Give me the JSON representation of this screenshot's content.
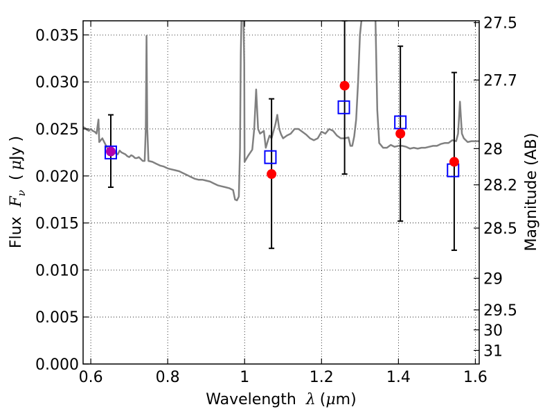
{
  "chart_data": {
    "type": "scatter",
    "xlabel": {
      "pre": "Wavelength",
      "sym": "λ",
      "open": "(",
      "mu": "μ",
      "unit": "m)"
    },
    "ylabel": {
      "pre": "Flux",
      "sym": "F",
      "sub": "ν",
      "open": "(",
      "mu": "μ",
      "unit": "Jy )"
    },
    "y2label": "Magnitude (AB)",
    "xlim": [
      0.58,
      1.61
    ],
    "ylim": [
      0.0,
      0.0365
    ],
    "grid": true,
    "x_ticks": [
      {
        "value": 0.6,
        "label": "0.6"
      },
      {
        "value": 0.8,
        "label": "0.8"
      },
      {
        "value": 1.0,
        "label": "1"
      },
      {
        "value": 1.2,
        "label": "1.2"
      },
      {
        "value": 1.4,
        "label": "1.4"
      },
      {
        "value": 1.6,
        "label": "1.6"
      }
    ],
    "y_ticks": [
      {
        "value": 0.0,
        "label": "0.000"
      },
      {
        "value": 0.005,
        "label": "0.005"
      },
      {
        "value": 0.01,
        "label": "0.010"
      },
      {
        "value": 0.015,
        "label": "0.015"
      },
      {
        "value": 0.02,
        "label": "0.020"
      },
      {
        "value": 0.025,
        "label": "0.025"
      },
      {
        "value": 0.03,
        "label": "0.030"
      },
      {
        "value": 0.035,
        "label": "0.035"
      }
    ],
    "y2_ticks": [
      {
        "value": 27.5,
        "label": "27.5"
      },
      {
        "value": 27.7,
        "label": "27.7"
      },
      {
        "value": 28.0,
        "label": "28"
      },
      {
        "value": 28.2,
        "label": "28.2"
      },
      {
        "value": 28.5,
        "label": "28.5"
      },
      {
        "value": 29.0,
        "label": "29"
      },
      {
        "value": 29.5,
        "label": "29.5"
      },
      {
        "value": 30.0,
        "label": "30"
      },
      {
        "value": 31.0,
        "label": "31"
      }
    ],
    "spectrum": {
      "color": "#808080",
      "points": [
        [
          0.58,
          0.0252
        ],
        [
          0.585,
          0.0251
        ],
        [
          0.59,
          0.0249
        ],
        [
          0.595,
          0.0248
        ],
        [
          0.6,
          0.025
        ],
        [
          0.605,
          0.0248
        ],
        [
          0.61,
          0.0247
        ],
        [
          0.615,
          0.0245
        ],
        [
          0.62,
          0.026
        ],
        [
          0.622,
          0.0236
        ],
        [
          0.63,
          0.024
        ],
        [
          0.635,
          0.0236
        ],
        [
          0.64,
          0.0232
        ],
        [
          0.645,
          0.0228
        ],
        [
          0.65,
          0.0227
        ],
        [
          0.655,
          0.0225
        ],
        [
          0.66,
          0.0226
        ],
        [
          0.665,
          0.0224
        ],
        [
          0.67,
          0.0223
        ],
        [
          0.675,
          0.0227
        ],
        [
          0.68,
          0.0225
        ],
        [
          0.685,
          0.0224
        ],
        [
          0.69,
          0.0223
        ],
        [
          0.695,
          0.0221
        ],
        [
          0.7,
          0.022
        ],
        [
          0.705,
          0.0222
        ],
        [
          0.71,
          0.0221
        ],
        [
          0.715,
          0.0219
        ],
        [
          0.72,
          0.0219
        ],
        [
          0.725,
          0.022
        ],
        [
          0.73,
          0.0218
        ],
        [
          0.735,
          0.0216
        ],
        [
          0.74,
          0.0216
        ],
        [
          0.743,
          0.025
        ],
        [
          0.745,
          0.0349
        ],
        [
          0.747,
          0.025
        ],
        [
          0.75,
          0.0216
        ],
        [
          0.76,
          0.0215
        ],
        [
          0.77,
          0.0213
        ],
        [
          0.78,
          0.0211
        ],
        [
          0.79,
          0.021
        ],
        [
          0.8,
          0.0208
        ],
        [
          0.81,
          0.0207
        ],
        [
          0.82,
          0.0206
        ],
        [
          0.83,
          0.0205
        ],
        [
          0.84,
          0.0203
        ],
        [
          0.85,
          0.0201
        ],
        [
          0.86,
          0.0199
        ],
        [
          0.87,
          0.0197
        ],
        [
          0.88,
          0.0196
        ],
        [
          0.89,
          0.0196
        ],
        [
          0.9,
          0.0195
        ],
        [
          0.91,
          0.0194
        ],
        [
          0.92,
          0.0192
        ],
        [
          0.93,
          0.019
        ],
        [
          0.94,
          0.0189
        ],
        [
          0.95,
          0.0188
        ],
        [
          0.96,
          0.0187
        ],
        [
          0.97,
          0.0185
        ],
        [
          0.975,
          0.0175
        ],
        [
          0.98,
          0.0174
        ],
        [
          0.985,
          0.0178
        ],
        [
          0.988,
          0.023
        ],
        [
          0.99,
          0.033
        ],
        [
          0.992,
          0.037
        ],
        [
          0.997,
          0.037
        ],
        [
          0.999,
          0.032
        ],
        [
          1.0,
          0.0215
        ],
        [
          1.01,
          0.0222
        ],
        [
          1.02,
          0.0228
        ],
        [
          1.025,
          0.025
        ],
        [
          1.03,
          0.0292
        ],
        [
          1.035,
          0.025
        ],
        [
          1.04,
          0.0245
        ],
        [
          1.05,
          0.0248
        ],
        [
          1.055,
          0.023
        ],
        [
          1.06,
          0.0237
        ],
        [
          1.065,
          0.0243
        ],
        [
          1.07,
          0.024
        ],
        [
          1.08,
          0.0255
        ],
        [
          1.085,
          0.0265
        ],
        [
          1.09,
          0.025
        ],
        [
          1.095,
          0.0244
        ],
        [
          1.1,
          0.024
        ],
        [
          1.11,
          0.0243
        ],
        [
          1.12,
          0.0245
        ],
        [
          1.13,
          0.025
        ],
        [
          1.14,
          0.025
        ],
        [
          1.15,
          0.0247
        ],
        [
          1.16,
          0.0244
        ],
        [
          1.17,
          0.024
        ],
        [
          1.18,
          0.0238
        ],
        [
          1.19,
          0.024
        ],
        [
          1.2,
          0.0247
        ],
        [
          1.21,
          0.0245
        ],
        [
          1.22,
          0.025
        ],
        [
          1.23,
          0.0248
        ],
        [
          1.24,
          0.0243
        ],
        [
          1.25,
          0.024
        ],
        [
          1.26,
          0.024
        ],
        [
          1.27,
          0.0241
        ],
        [
          1.275,
          0.0232
        ],
        [
          1.28,
          0.0232
        ],
        [
          1.285,
          0.0242
        ],
        [
          1.29,
          0.026
        ],
        [
          1.295,
          0.03
        ],
        [
          1.3,
          0.035
        ],
        [
          1.305,
          0.037
        ],
        [
          1.34,
          0.037
        ],
        [
          1.345,
          0.027
        ],
        [
          1.35,
          0.0235
        ],
        [
          1.36,
          0.023
        ],
        [
          1.37,
          0.023
        ],
        [
          1.38,
          0.0233
        ],
        [
          1.39,
          0.0231
        ],
        [
          1.4,
          0.0232
        ],
        [
          1.41,
          0.0232
        ],
        [
          1.42,
          0.0231
        ],
        [
          1.43,
          0.0229
        ],
        [
          1.44,
          0.023
        ],
        [
          1.45,
          0.0229
        ],
        [
          1.46,
          0.023
        ],
        [
          1.47,
          0.023
        ],
        [
          1.48,
          0.0231
        ],
        [
          1.49,
          0.0232
        ],
        [
          1.5,
          0.0232
        ],
        [
          1.51,
          0.0234
        ],
        [
          1.52,
          0.0235
        ],
        [
          1.53,
          0.0235
        ],
        [
          1.54,
          0.0238
        ],
        [
          1.55,
          0.0237
        ],
        [
          1.555,
          0.0245
        ],
        [
          1.56,
          0.0279
        ],
        [
          1.565,
          0.0245
        ],
        [
          1.57,
          0.024
        ],
        [
          1.58,
          0.0236
        ],
        [
          1.59,
          0.0237
        ],
        [
          1.6,
          0.0237
        ],
        [
          1.61,
          0.0237
        ]
      ]
    },
    "measurements": [
      {
        "x": 0.652,
        "y": 0.0226,
        "yerr_low": 0.0188,
        "yerr_high": 0.0265,
        "color": "#ff0000"
      },
      {
        "x": 1.07,
        "y": 0.0202,
        "yerr_low": 0.0123,
        "yerr_high": 0.0282,
        "color": "#ff0000"
      },
      {
        "x": 1.26,
        "y": 0.0296,
        "yerr_low": 0.0202,
        "yerr_high": 0.0365,
        "color": "#ff0000"
      },
      {
        "x": 1.405,
        "y": 0.0245,
        "yerr_low": 0.0152,
        "yerr_high": 0.0338,
        "color": "#ff0000"
      },
      {
        "x": 1.545,
        "y": 0.0215,
        "yerr_low": 0.0121,
        "yerr_high": 0.031,
        "color": "#ff0000"
      }
    ],
    "model_points": [
      {
        "x": 0.652,
        "y": 0.0225,
        "color": "#0000ff"
      },
      {
        "x": 1.067,
        "y": 0.022,
        "color": "#0000ff"
      },
      {
        "x": 1.258,
        "y": 0.0273,
        "color": "#0000ff"
      },
      {
        "x": 1.405,
        "y": 0.0257,
        "color": "#0000ff"
      },
      {
        "x": 1.542,
        "y": 0.0206,
        "color": "#0000ff"
      }
    ]
  }
}
